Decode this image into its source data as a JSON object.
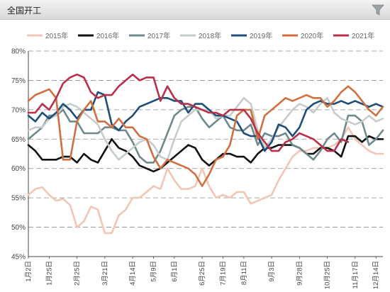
{
  "header": {
    "title": "全国开工",
    "filter_icon": "filter-funnel-icon"
  },
  "chart_data": {
    "type": "line",
    "title": "全国开工",
    "ylim": [
      45,
      80
    ],
    "yticks": [
      "45%",
      "50%",
      "55%",
      "60%",
      "65%",
      "70%",
      "75%",
      "80%"
    ],
    "xlim": [
      1,
      52
    ],
    "xtick_positions": [
      1,
      4,
      8,
      12,
      16,
      19,
      22,
      26,
      29,
      32,
      36,
      40,
      44,
      48,
      51
    ],
    "xtick_labels": [
      "1月2日",
      "1月25日",
      "2月25日",
      "3月21日",
      "4月14日",
      "5月9日",
      "6月1日",
      "6月25日",
      "7月19日",
      "8月11日",
      "9月3日",
      "9月28日",
      "10月25日",
      "11月17日",
      "12月14日"
    ],
    "legend_position": "top",
    "grid": "horizontal dashed",
    "series": [
      {
        "name": "2015年",
        "color": "#f2c6b4",
        "x": [
          1,
          2,
          3,
          4,
          5,
          6,
          7,
          8,
          9,
          10,
          11,
          12,
          13,
          14,
          15,
          16,
          17,
          18,
          19,
          20,
          21,
          22,
          23,
          24,
          25,
          26,
          27,
          28,
          29,
          30,
          31,
          32,
          33,
          34,
          35,
          36,
          37,
          38,
          39,
          40,
          41,
          42,
          43,
          44,
          45,
          46,
          47,
          48,
          49,
          50,
          51,
          52
        ],
        "values": [
          55.5,
          56.5,
          56.8,
          55.5,
          54.5,
          54.8,
          53.8,
          50,
          51,
          53.5,
          53,
          49,
          49,
          52,
          53,
          55,
          55,
          56,
          57,
          56.5,
          60,
          58,
          56.5,
          56.5,
          57,
          60,
          57,
          55,
          55.5,
          55,
          56,
          56,
          54,
          54.5,
          55,
          55.5,
          58,
          60,
          62,
          63,
          63,
          63.5,
          63.5,
          63.5,
          64,
          65,
          67,
          65,
          64,
          63,
          62.5,
          62.5
        ]
      },
      {
        "name": "2016年",
        "color": "#111111",
        "x": [
          1,
          2,
          3,
          4,
          5,
          6,
          7,
          8,
          9,
          10,
          11,
          12,
          13,
          14,
          15,
          16,
          17,
          18,
          19,
          20,
          21,
          22,
          23,
          24,
          25,
          26,
          27,
          28,
          29,
          30,
          31,
          32,
          33,
          34,
          35,
          36,
          37,
          38,
          39,
          40,
          41,
          42,
          43,
          44,
          45,
          46,
          47,
          48,
          49,
          50,
          51,
          52
        ],
        "values": [
          64,
          63,
          61.5,
          61.5,
          61.5,
          62,
          62,
          61,
          62.5,
          61.5,
          61,
          63,
          65,
          63.5,
          63,
          62,
          60.5,
          60,
          59.5,
          60,
          61,
          62,
          63,
          64,
          63.5,
          61.5,
          60.5,
          61.5,
          62.5,
          62.5,
          62,
          62,
          61,
          62.5,
          63.5,
          63.5,
          64,
          64,
          64,
          63.5,
          62.5,
          62.5,
          63.5,
          63.5,
          63,
          62,
          65.5,
          65.5,
          64.5,
          65.5,
          65,
          65
        ]
      },
      {
        "name": "2017年",
        "color": "#6e8a8c",
        "x": [
          1,
          2,
          3,
          4,
          5,
          6,
          7,
          8,
          9,
          10,
          11,
          12,
          13,
          14,
          15,
          16,
          17,
          18,
          19,
          20,
          21,
          22,
          23,
          24,
          25,
          26,
          27,
          28,
          29,
          30,
          31,
          32,
          33,
          34,
          35,
          36,
          37,
          38,
          39,
          40,
          41,
          42,
          43,
          44,
          45,
          46,
          47,
          48,
          49,
          50,
          51,
          52
        ],
        "values": [
          65,
          66,
          67,
          69,
          69,
          70,
          68,
          68,
          66,
          66,
          66,
          67,
          67,
          66.5,
          66.5,
          64.5,
          62,
          61,
          61,
          63,
          66,
          69,
          70,
          70.5,
          70.5,
          68.5,
          67,
          68,
          69,
          67,
          66.5,
          66.5,
          67.5,
          64,
          66,
          65.5,
          65.5,
          66,
          64,
          63.5,
          62.5,
          61.5,
          63,
          65,
          66,
          64.5,
          69,
          69,
          68,
          64,
          65,
          66.5
        ]
      },
      {
        "name": "2018年",
        "color": "#c6cbcc",
        "x": [
          1,
          2,
          3,
          4,
          5,
          6,
          7,
          8,
          9,
          10,
          11,
          12,
          13,
          14,
          15,
          16,
          17,
          18,
          19,
          20,
          21,
          22,
          23,
          24,
          25,
          26,
          27,
          28,
          29,
          30,
          31,
          32,
          33,
          34,
          35,
          36,
          37,
          38,
          39,
          40,
          41,
          42,
          43,
          44,
          45,
          46,
          47,
          48,
          49,
          50,
          51,
          52
        ],
        "values": [
          66.5,
          67,
          67,
          68.5,
          69,
          70.5,
          71,
          70.5,
          69.5,
          68.5,
          67.5,
          65,
          63,
          61.5,
          62.5,
          63.5,
          64.5,
          65,
          64,
          62,
          61.5,
          65,
          68,
          69,
          70,
          70,
          70,
          68.5,
          69,
          69,
          70.5,
          72,
          71,
          66.5,
          63.5,
          65,
          67,
          68.5,
          70,
          71,
          70.5,
          69.5,
          71,
          72,
          69.5,
          68.5,
          68,
          67.5,
          68,
          69,
          68,
          68.5
        ]
      },
      {
        "name": "2019年",
        "color": "#1f4e79",
        "x": [
          1,
          2,
          3,
          4,
          5,
          6,
          7,
          8,
          9,
          10,
          11,
          12,
          13,
          14,
          15,
          16,
          17,
          18,
          19,
          20,
          21,
          22,
          23,
          24,
          25,
          26,
          27,
          28,
          29,
          30,
          31,
          32,
          33,
          34,
          35,
          36,
          37,
          38,
          39,
          40,
          41,
          42,
          43,
          44,
          45,
          46,
          47,
          48,
          49,
          50,
          51,
          52
        ],
        "values": [
          69,
          68,
          69.5,
          68.5,
          69.5,
          71,
          70,
          68.5,
          70,
          70,
          73,
          72.5,
          67.5,
          66.5,
          68,
          69,
          70.5,
          71,
          71.5,
          72,
          72,
          71.5,
          71.5,
          69.5,
          71,
          71,
          70,
          69,
          69,
          68.5,
          68,
          66,
          65.5,
          65.5,
          63,
          64.5,
          67.5,
          67,
          65.5,
          67,
          70,
          71,
          71.5,
          71,
          71,
          71.5,
          71,
          71.5,
          71,
          70.5,
          71,
          70.5
        ]
      },
      {
        "name": "2020年",
        "color": "#d07040",
        "x": [
          1,
          2,
          3,
          4,
          5,
          6,
          7,
          8,
          9,
          10,
          11,
          12,
          13,
          14,
          15,
          16,
          17,
          18,
          19,
          20,
          21,
          22,
          23,
          24,
          25,
          26,
          27,
          28,
          29,
          30,
          31,
          32,
          33,
          34,
          35,
          36,
          37,
          38,
          39,
          40,
          41,
          42,
          43,
          44,
          45,
          46,
          47,
          48,
          49,
          50,
          51,
          52
        ],
        "values": [
          71.5,
          72.5,
          73,
          73.5,
          72,
          61.5,
          61.5,
          68,
          70,
          71.5,
          68,
          68,
          67,
          68.5,
          67,
          67,
          65.5,
          65,
          62,
          60,
          61.5,
          61,
          60.5,
          60,
          59,
          57,
          59,
          61.5,
          62,
          64,
          69,
          70,
          70,
          65,
          69,
          70,
          71,
          72,
          71.5,
          72,
          72.5,
          72,
          72,
          70.5,
          71.5,
          73,
          74,
          73,
          71.5,
          70,
          69,
          70.5
        ]
      },
      {
        "name": "2021年",
        "color": "#b8304a",
        "x": [
          1,
          2,
          3,
          4,
          5,
          6,
          7,
          8,
          9,
          10,
          11,
          12,
          13,
          14,
          15,
          16,
          17,
          18,
          19,
          20,
          21,
          22,
          23,
          24,
          25,
          26,
          27,
          28,
          29,
          30,
          31,
          32,
          33,
          34,
          35,
          36,
          37,
          38,
          39,
          40,
          41,
          42,
          43,
          44,
          45,
          46,
          47
        ],
        "values": [
          69.5,
          69.5,
          71,
          70,
          72,
          74.5,
          75.5,
          76,
          75.5,
          73,
          72,
          72.5,
          72.5,
          74,
          75,
          76,
          75,
          75.5,
          75.5,
          71.5,
          74,
          72,
          71,
          71,
          70.5,
          70,
          69.5,
          69.5,
          69,
          70,
          70,
          70,
          68.5,
          66,
          64.5,
          63,
          63,
          64.5,
          65,
          66,
          65.5,
          65,
          64,
          63,
          63,
          65,
          64.5
        ]
      }
    ]
  }
}
